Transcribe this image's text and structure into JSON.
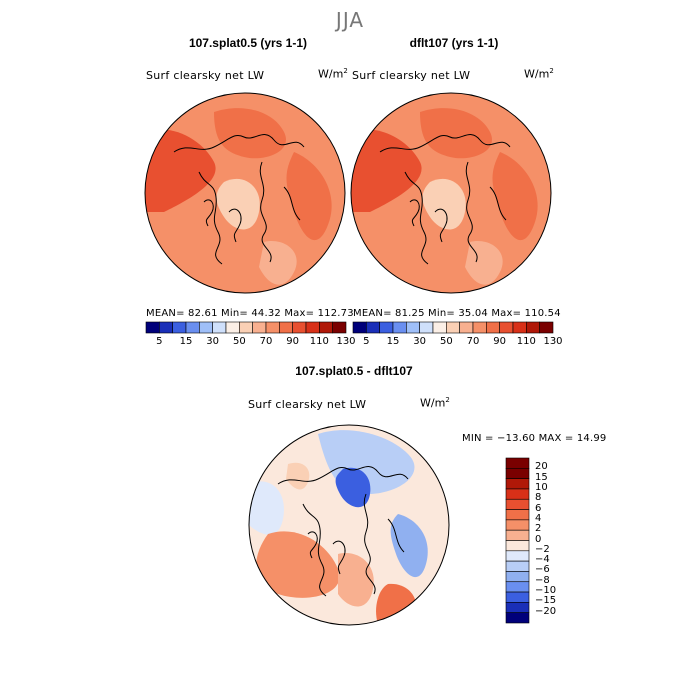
{
  "title": "JJA",
  "units_base": "W/m",
  "units_exp": "2",
  "chart_data": [
    {
      "type": "heatmap",
      "projection": "polar-stereographic (north)",
      "title": "107.splat0.5 (yrs 1-1)",
      "variable": "Surf clearsky net LW",
      "units": "W/m^2",
      "stats": {
        "mean": "82.61",
        "min": "44.32",
        "max": "112.73"
      },
      "stats_text": "MEAN=   82.61   Min=   44.32   Max=  112.73",
      "contour_levels": [
        5,
        10,
        15,
        20,
        30,
        40,
        50,
        60,
        70,
        80,
        90,
        100,
        110,
        120,
        130
      ],
      "colorbar_labels": [
        "5",
        "15",
        "30",
        "50",
        "70",
        "90",
        "110",
        "130"
      ]
    },
    {
      "type": "heatmap",
      "projection": "polar-stereographic (north)",
      "title": "dflt107 (yrs 1-1)",
      "variable": "Surf clearsky net LW",
      "units": "W/m^2",
      "stats": {
        "mean": "81.25",
        "min": "35.04",
        "max": "110.54"
      },
      "stats_text": "MEAN=   81.25   Min=   35.04   Max=  110.54",
      "contour_levels": [
        5,
        10,
        15,
        20,
        30,
        40,
        50,
        60,
        70,
        80,
        90,
        100,
        110,
        120,
        130
      ],
      "colorbar_labels": [
        "5",
        "15",
        "30",
        "50",
        "70",
        "90",
        "110",
        "130"
      ]
    },
    {
      "type": "heatmap",
      "projection": "polar-stereographic (north)",
      "title": "107.splat0.5 - dflt107",
      "variable": "Surf clearsky net LW",
      "units": "W/m^2",
      "stats": {
        "min": "-13.60",
        "max": "14.99"
      },
      "stats_text": "MIN = −13.60 MAX =  14.99",
      "contour_levels": [
        -20,
        -15,
        -10,
        -8,
        -6,
        -4,
        -2,
        0,
        2,
        4,
        6,
        8,
        10,
        15,
        20
      ],
      "colorbar_labels": [
        "20",
        "15",
        "10",
        "8",
        "6",
        "4",
        "2",
        "0",
        "−2",
        "−4",
        "−6",
        "−8",
        "−10",
        "−15",
        "−20"
      ]
    }
  ],
  "colors": {
    "abs_scale": [
      "#00007a",
      "#1a2fb8",
      "#3b5fe0",
      "#6a8ff0",
      "#9fbff8",
      "#cfe0fb",
      "#fbefe6",
      "#fad0b5",
      "#f8b090",
      "#f59068",
      "#f07048",
      "#e85030",
      "#d83018",
      "#b01808",
      "#7a0000"
    ],
    "diff_scale": [
      "#7a0000",
      "#b01808",
      "#d83018",
      "#e85030",
      "#f07048",
      "#f59068",
      "#f8b090",
      "#fbe8dc",
      "#dfe9fb",
      "#b8cef6",
      "#90b0f0",
      "#6a8ff0",
      "#3b5fe0",
      "#1a2fb8",
      "#00007a"
    ]
  }
}
